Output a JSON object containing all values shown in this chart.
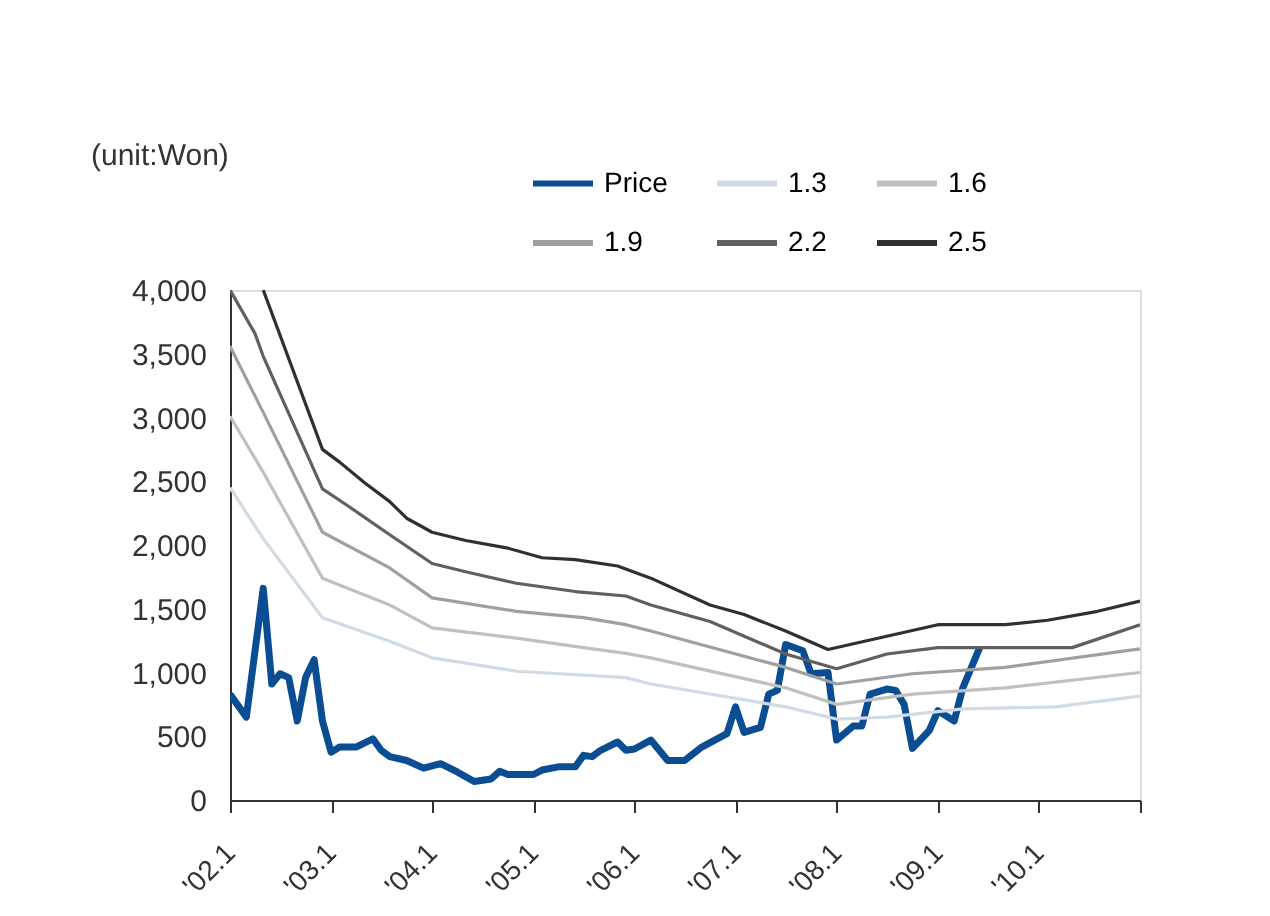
{
  "chart_data": {
    "type": "line",
    "ylabel": "(unit:Won)",
    "xlim": [
      "2002-01",
      "2011-01"
    ],
    "xticks": [
      {
        "value": "2002-01",
        "label": "'02.1"
      },
      {
        "value": "2003-01",
        "label": "'03.1"
      },
      {
        "value": "2004-01",
        "label": "'04.1"
      },
      {
        "value": "2005-01",
        "label": "'05.1"
      },
      {
        "value": "2006-01",
        "label": "'06.1"
      },
      {
        "value": "2007-01",
        "label": "'07.1"
      },
      {
        "value": "2008-01",
        "label": "'08.1"
      },
      {
        "value": "2009-01",
        "label": "'09.1"
      },
      {
        "value": "2010-01",
        "label": "'10.1"
      },
      {
        "value": "2011-01",
        "label": null
      }
    ],
    "ylim": [
      0,
      4000
    ],
    "yticks": [
      0,
      500,
      {
        "value": 1000,
        "label": "1,000"
      },
      {
        "value": 1500,
        "label": "1,500"
      },
      {
        "value": 2000,
        "label": "2,000"
      },
      {
        "value": 2500,
        "label": "2,500"
      },
      {
        "value": 3000,
        "label": "3,000"
      },
      {
        "value": 3500,
        "label": "3,500"
      },
      {
        "value": 4000,
        "label": "4,000"
      }
    ],
    "grid": false,
    "legend": "top right",
    "series": [
      {
        "name": "Price",
        "color": "#0a4d92",
        "x": [
          "2002-01",
          "2002-03",
          "2002-05",
          "2002-06",
          "2002-07",
          "2002-08",
          "2002-09",
          "2002-10",
          "2002-11",
          "2002-12",
          "2003-01",
          "2003-02",
          "2003-04",
          "2003-06",
          "2003-07",
          "2003-08",
          "2003-10",
          "2003-12",
          "2004-02",
          "2004-04",
          "2004-06",
          "2004-08",
          "2004-09",
          "2004-10",
          "2005-01",
          "2005-02",
          "2005-04",
          "2005-06",
          "2005-07",
          "2005-08",
          "2005-09",
          "2005-11",
          "2005-12",
          "2006-01",
          "2006-03",
          "2006-05",
          "2006-07",
          "2006-09",
          "2006-12",
          "2007-01",
          "2007-02",
          "2007-04",
          "2007-05",
          "2007-06",
          "2007-07",
          "2007-09",
          "2007-10",
          "2007-12",
          "2008-01",
          "2008-03",
          "2008-04",
          "2008-05",
          "2008-07",
          "2008-08",
          "2008-09",
          "2008-10",
          "2008-12",
          "2009-01",
          "2009-03",
          "2009-04",
          "2009-06"
        ],
        "values": [
          830,
          650,
          1660,
          910,
          990,
          960,
          620,
          960,
          1100,
          620,
          375,
          415,
          415,
          480,
          390,
          340,
          310,
          250,
          285,
          220,
          145,
          165,
          225,
          200,
          200,
          235,
          260,
          260,
          350,
          340,
          390,
          455,
          390,
          400,
          470,
          310,
          310,
          415,
          520,
          730,
          530,
          570,
          830,
          860,
          1220,
          1170,
          990,
          1000,
          470,
          580,
          580,
          830,
          870,
          860,
          750,
          405,
          545,
          700,
          620,
          880,
          1195
        ]
      },
      {
        "name": "1.3",
        "color": "#d0dbe6",
        "x": [
          "2002-01",
          "2002-05",
          "2002-12",
          "2003-08",
          "2004-01",
          "2004-11",
          "2005-12",
          "2006-03",
          "2007-07",
          "2008-01",
          "2008-07",
          "2009-04",
          "2010-03",
          "2011-01"
        ],
        "values": [
          2450,
          2050,
          1430,
          1245,
          1115,
          1010,
          960,
          910,
          730,
          635,
          650,
          715,
          730,
          815
        ]
      },
      {
        "name": "1.6",
        "color": "#c0c0c0",
        "x": [
          "2002-01",
          "2002-05",
          "2002-12",
          "2003-08",
          "2004-01",
          "2004-11",
          "2005-07",
          "2005-12",
          "2006-03",
          "2007-07",
          "2008-01",
          "2008-10",
          "2009-09",
          "2011-01"
        ],
        "values": [
          3010,
          2570,
          1740,
          1530,
          1350,
          1270,
          1195,
          1150,
          1115,
          880,
          750,
          830,
          880,
          1000
        ]
      },
      {
        "name": "1.9",
        "color": "#a0a0a0",
        "x": [
          "2002-01",
          "2002-05",
          "2002-12",
          "2003-08",
          "2004-01",
          "2004-11",
          "2005-07",
          "2005-12",
          "2006-03",
          "2007-07",
          "2008-01",
          "2008-10",
          "2009-09",
          "2011-01"
        ],
        "values": [
          3560,
          3040,
          2100,
          1820,
          1585,
          1480,
          1430,
          1375,
          1325,
          1040,
          910,
          990,
          1040,
          1185
        ]
      },
      {
        "name": "2.2",
        "color": "#606060",
        "x": [
          "2002-01",
          "2002-04",
          "2002-05",
          "2002-12",
          "2003-03",
          "2003-08",
          "2004-01",
          "2004-05",
          "2004-11",
          "2005-06",
          "2005-12",
          "2006-03",
          "2006-10",
          "2007-07",
          "2008-01",
          "2008-07",
          "2009-01",
          "2010-05",
          "2011-01"
        ],
        "values": [
          4000,
          3660,
          3480,
          2440,
          2310,
          2080,
          1855,
          1790,
          1700,
          1635,
          1600,
          1530,
          1400,
          1145,
          1030,
          1145,
          1195,
          1195,
          1375
        ]
      },
      {
        "name": "2.5",
        "color": "#303030",
        "x": [
          "2002-05",
          "2002-12",
          "2003-02",
          "2003-05",
          "2003-08",
          "2003-10",
          "2004-01",
          "2004-05",
          "2004-10",
          "2005-02",
          "2005-06",
          "2005-11",
          "2006-03",
          "2006-10",
          "2007-02",
          "2007-07",
          "2007-12",
          "2008-05",
          "2009-01",
          "2009-09",
          "2010-02",
          "2010-08",
          "2011-01"
        ],
        "values": [
          4000,
          2750,
          2650,
          2490,
          2340,
          2210,
          2100,
          2035,
          1975,
          1900,
          1885,
          1835,
          1740,
          1530,
          1455,
          1325,
          1180,
          1255,
          1375,
          1375,
          1410,
          1480,
          1560
        ]
      }
    ]
  }
}
